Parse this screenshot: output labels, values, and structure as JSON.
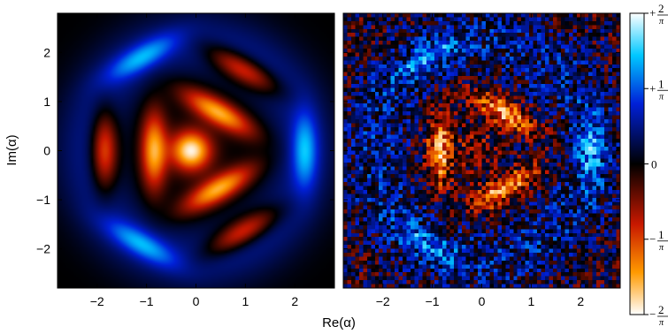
{
  "chart_data": [
    {
      "type": "heatmap",
      "panel": "left",
      "xlabel": "",
      "ylabel": "Im(α)",
      "xlim": [
        -2.8,
        2.8
      ],
      "ylim": [
        -2.8,
        2.8
      ],
      "x_ticks": [
        -2,
        -1,
        0,
        1,
        2
      ],
      "x_tick_labels": [
        "−2",
        "−1",
        "0",
        "1",
        "2"
      ],
      "y_ticks": [
        2,
        1,
        0,
        -1,
        -2
      ],
      "y_tick_labels": [
        "2",
        "1",
        "0",
        "−1",
        "−2"
      ],
      "grid": false,
      "features": [
        {
          "x": -0.1,
          "y": 0.0,
          "value": -0.62
        },
        {
          "x": -0.85,
          "y": 0.0,
          "value": -0.5
        },
        {
          "x": -1.85,
          "y": 0.0,
          "value": -0.42
        },
        {
          "x": 0.45,
          "y": 0.78,
          "value": -0.5
        },
        {
          "x": 0.45,
          "y": -0.78,
          "value": -0.5
        },
        {
          "x": 0.95,
          "y": 1.65,
          "value": -0.38
        },
        {
          "x": 0.95,
          "y": -1.65,
          "value": -0.38
        },
        {
          "x": 2.2,
          "y": 0.0,
          "value": 0.32
        },
        {
          "x": -1.1,
          "y": 1.9,
          "value": 0.3
        },
        {
          "x": -1.1,
          "y": -1.9,
          "value": 0.3
        }
      ]
    },
    {
      "type": "heatmap",
      "panel": "right",
      "xlabel": "",
      "ylabel": "",
      "xlim": [
        -2.8,
        2.8
      ],
      "ylim": [
        -2.8,
        2.8
      ],
      "x_ticks": [
        -2,
        -1,
        0,
        1,
        2
      ],
      "x_tick_labels": [
        "−2",
        "−1",
        "0",
        "1",
        "2"
      ],
      "grid": false,
      "noisy": true,
      "features": [
        {
          "x": -0.1,
          "y": 0.0,
          "value": -0.18
        },
        {
          "x": -0.85,
          "y": 0.0,
          "value": -0.45
        },
        {
          "x": 0.45,
          "y": 0.78,
          "value": -0.45
        },
        {
          "x": 0.45,
          "y": -0.78,
          "value": -0.45
        },
        {
          "x": 2.2,
          "y": 0.0,
          "value": 0.25
        },
        {
          "x": -1.1,
          "y": 1.9,
          "value": 0.22
        },
        {
          "x": -1.1,
          "y": -1.9,
          "value": 0.22
        }
      ]
    }
  ],
  "shared_xlabel": "Re(α)",
  "colorbar": {
    "range": [
      -0.6366,
      0.6366
    ],
    "tick_values": [
      0.6366,
      0.3183,
      0,
      -0.3183,
      -0.6366
    ],
    "tick_prefix": [
      "+",
      "+",
      "",
      "−",
      "−"
    ],
    "tick_numerators": [
      "2",
      "1",
      "0",
      "1",
      "2"
    ],
    "tick_denominators": [
      "π",
      "π",
      "",
      "π",
      "π"
    ],
    "colors": {
      "top": "#ffffff",
      "upper": "#00c8ff",
      "mid_upper": "#0020d8",
      "zero": "#000000",
      "mid_lower": "#c81800",
      "lower": "#ff9a00",
      "bottom": "#ffffff"
    }
  }
}
